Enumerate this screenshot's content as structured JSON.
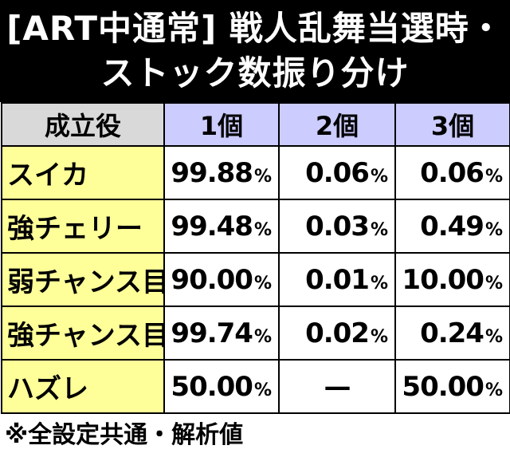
{
  "title": {
    "line1": "[ART中通常] 戦人乱舞当選時・",
    "line2": "ストック数振り分け"
  },
  "table": {
    "headers": [
      "成立役",
      "1個",
      "2個",
      "3個"
    ],
    "rows": [
      {
        "role": "スイカ",
        "v1": "99.88",
        "v2": "0.06",
        "v3": "0.06"
      },
      {
        "role": "強チェリー",
        "v1": "99.48",
        "v2": "0.03",
        "v3": "0.49"
      },
      {
        "role": "弱チャンス目",
        "v1": "90.00",
        "v2": "0.01",
        "v3": "10.00"
      },
      {
        "role": "強チャンス目",
        "v1": "99.74",
        "v2": "0.02",
        "v3": "0.24"
      },
      {
        "role": "ハズレ",
        "v1": "50.00",
        "v2": "—",
        "v3": "50.00"
      }
    ],
    "percent_sign": "%"
  },
  "note": "※全設定共通・解析値",
  "colors": {
    "title_bg": "#000000",
    "header_role_bg": "#d9d9d9",
    "header_count_bg": "#ccccff",
    "role_bg": "#ffff99"
  }
}
